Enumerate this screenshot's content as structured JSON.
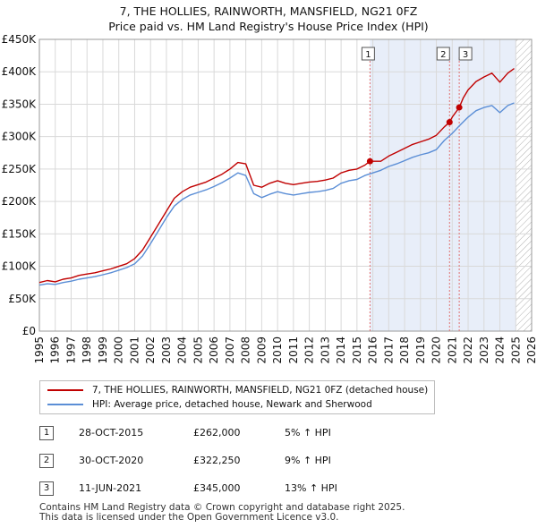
{
  "title": {
    "line1": "7, THE HOLLIES, RAINWORTH, MANSFIELD, NG21 0FZ",
    "line2": "Price paid vs. HM Land Registry's House Price Index (HPI)"
  },
  "chart_data": {
    "type": "line",
    "title": "Price paid vs. HM Land Registry's House Price Index (HPI)",
    "xlim": [
      1995,
      2026
    ],
    "ylim": [
      0,
      450000
    ],
    "y_ticks": [
      0,
      50000,
      100000,
      150000,
      200000,
      250000,
      300000,
      350000,
      400000,
      450000
    ],
    "y_tick_labels": [
      "£0",
      "£50K",
      "£100K",
      "£150K",
      "£200K",
      "£250K",
      "£300K",
      "£350K",
      "£400K",
      "£450K"
    ],
    "x_ticks": [
      1995,
      1996,
      1997,
      1998,
      1999,
      2000,
      2001,
      2002,
      2003,
      2004,
      2005,
      2006,
      2007,
      2008,
      2009,
      2010,
      2011,
      2012,
      2013,
      2014,
      2015,
      2016,
      2017,
      2018,
      2019,
      2020,
      2021,
      2022,
      2023,
      2024,
      2025,
      2026
    ],
    "grid": true,
    "legend_placement": "bottom",
    "shaded_period": [
      2015.82,
      2025.0
    ],
    "hatched_future": [
      2025.0,
      2026.0
    ],
    "colors": {
      "property": "#c00000",
      "hpi": "#5b8ed6",
      "shade": "#e8eef9",
      "marker_line": "#e07070"
    },
    "series": [
      {
        "name": "7, THE HOLLIES, RAINWORTH, MANSFIELD, NG21 0FZ (detached house)",
        "x": [
          1995.0,
          1995.5,
          1996.0,
          1996.5,
          1997.0,
          1997.5,
          1998.0,
          1998.5,
          1999.0,
          1999.5,
          2000.0,
          2000.5,
          2001.0,
          2001.5,
          2002.0,
          2002.5,
          2003.0,
          2003.5,
          2004.0,
          2004.5,
          2005.0,
          2005.5,
          2006.0,
          2006.5,
          2007.0,
          2007.5,
          2008.0,
          2008.5,
          2009.0,
          2009.5,
          2010.0,
          2010.5,
          2011.0,
          2011.5,
          2012.0,
          2012.5,
          2013.0,
          2013.5,
          2014.0,
          2014.5,
          2015.0,
          2015.5,
          2015.82,
          2016.5,
          2017.0,
          2017.5,
          2018.0,
          2018.5,
          2019.0,
          2019.5,
          2020.0,
          2020.5,
          2020.83,
          2021.0,
          2021.44,
          2021.7,
          2022.0,
          2022.5,
          2023.0,
          2023.5,
          2024.0,
          2024.5,
          2024.9
        ],
        "values": [
          75000,
          78000,
          76000,
          80000,
          82000,
          86000,
          88000,
          90000,
          93000,
          96000,
          100000,
          104000,
          112000,
          125000,
          145000,
          165000,
          185000,
          205000,
          215000,
          222000,
          226000,
          230000,
          236000,
          242000,
          250000,
          260000,
          258000,
          225000,
          222000,
          228000,
          232000,
          228000,
          226000,
          228000,
          230000,
          231000,
          233000,
          236000,
          244000,
          248000,
          250000,
          256000,
          262000,
          262000,
          270000,
          276000,
          282000,
          288000,
          292000,
          296000,
          302000,
          315000,
          322250,
          330000,
          345000,
          360000,
          372000,
          385000,
          392000,
          398000,
          384000,
          398000,
          405000
        ]
      },
      {
        "name": "HPI: Average price, detached house, Newark and Sherwood",
        "x": [
          1995.0,
          1995.5,
          1996.0,
          1996.5,
          1997.0,
          1997.5,
          1998.0,
          1998.5,
          1999.0,
          1999.5,
          2000.0,
          2000.5,
          2001.0,
          2001.5,
          2002.0,
          2002.5,
          2003.0,
          2003.5,
          2004.0,
          2004.5,
          2005.0,
          2005.5,
          2006.0,
          2006.5,
          2007.0,
          2007.5,
          2008.0,
          2008.5,
          2009.0,
          2009.5,
          2010.0,
          2010.5,
          2011.0,
          2011.5,
          2012.0,
          2012.5,
          2013.0,
          2013.5,
          2014.0,
          2014.5,
          2015.0,
          2015.5,
          2016.0,
          2016.5,
          2017.0,
          2017.5,
          2018.0,
          2018.5,
          2019.0,
          2019.5,
          2020.0,
          2020.5,
          2021.0,
          2021.5,
          2022.0,
          2022.5,
          2023.0,
          2023.5,
          2024.0,
          2024.5,
          2024.9
        ],
        "values": [
          71000,
          73000,
          72000,
          75000,
          77000,
          80000,
          82000,
          84000,
          87000,
          90000,
          94000,
          98000,
          104000,
          116000,
          135000,
          155000,
          175000,
          193000,
          203000,
          210000,
          214000,
          218000,
          223000,
          229000,
          236000,
          244000,
          240000,
          212000,
          206000,
          211000,
          215000,
          212000,
          210000,
          212000,
          214000,
          215000,
          217000,
          220000,
          228000,
          232000,
          234000,
          240000,
          244000,
          248000,
          254000,
          258000,
          263000,
          268000,
          272000,
          275000,
          280000,
          294000,
          305000,
          318000,
          330000,
          340000,
          345000,
          348000,
          337000,
          348000,
          352000
        ]
      }
    ],
    "sales": [
      {
        "label": "1",
        "x": 2015.82,
        "value": 262000
      },
      {
        "label": "2",
        "x": 2020.83,
        "value": 322250
      },
      {
        "label": "3",
        "x": 2021.44,
        "value": 345000
      }
    ]
  },
  "legend": {
    "property": "7, THE HOLLIES, RAINWORTH, MANSFIELD, NG21 0FZ (detached house)",
    "hpi": "HPI: Average price, detached house, Newark and Sherwood"
  },
  "transactions": [
    {
      "num": "1",
      "date": "28-OCT-2015",
      "price": "£262,000",
      "hpi": "5% ↑ HPI"
    },
    {
      "num": "2",
      "date": "30-OCT-2020",
      "price": "£322,250",
      "hpi": "9% ↑ HPI"
    },
    {
      "num": "3",
      "date": "11-JUN-2021",
      "price": "£345,000",
      "hpi": "13% ↑ HPI"
    }
  ],
  "footer": {
    "line1": "Contains HM Land Registry data © Crown copyright and database right 2025.",
    "line2": "This data is licensed under the Open Government Licence v3.0."
  }
}
